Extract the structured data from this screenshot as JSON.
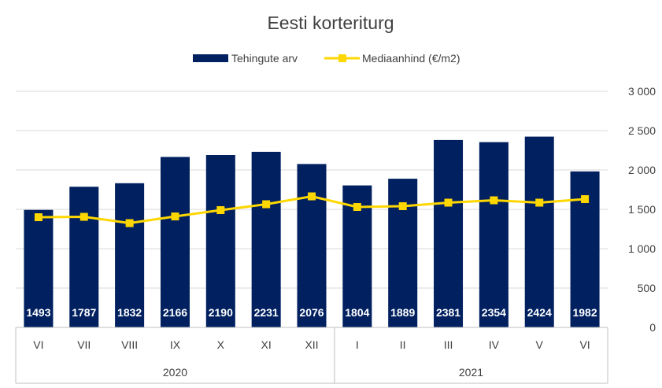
{
  "chart_data": {
    "type": "bar",
    "title": "Eesti korteriturg",
    "categories": [
      "VI",
      "VII",
      "VIII",
      "IX",
      "X",
      "XI",
      "XII",
      "I",
      "II",
      "III",
      "IV",
      "V",
      "VI"
    ],
    "groups": [
      {
        "label": "2020",
        "count": 7
      },
      {
        "label": "2021",
        "count": 6
      }
    ],
    "series": [
      {
        "name": "Tehingute arv",
        "type": "bar",
        "color": "#002060",
        "values": [
          1493,
          1787,
          1832,
          2166,
          2190,
          2231,
          2076,
          1804,
          1889,
          2381,
          2354,
          2424,
          1982
        ],
        "data_labels": [
          "1493",
          "1787",
          "1832",
          "2166",
          "2190",
          "2231",
          "2076",
          "1804",
          "1889",
          "2381",
          "2354",
          "2424",
          "1982"
        ]
      },
      {
        "name": "Mediaanhind (€/m2)",
        "type": "line",
        "color": "#FFD700",
        "values": [
          1400,
          1405,
          1325,
          1410,
          1490,
          1565,
          1665,
          1530,
          1540,
          1585,
          1615,
          1585,
          1630
        ]
      }
    ],
    "ylim": [
      0,
      3000
    ],
    "yticks": [
      0,
      500,
      1000,
      1500,
      2000,
      2500,
      3000
    ],
    "ytick_labels": [
      "0",
      "500",
      "1 000",
      "1 500",
      "2 000",
      "2 500",
      "3 000"
    ],
    "grid": true,
    "legend_position": "top"
  }
}
